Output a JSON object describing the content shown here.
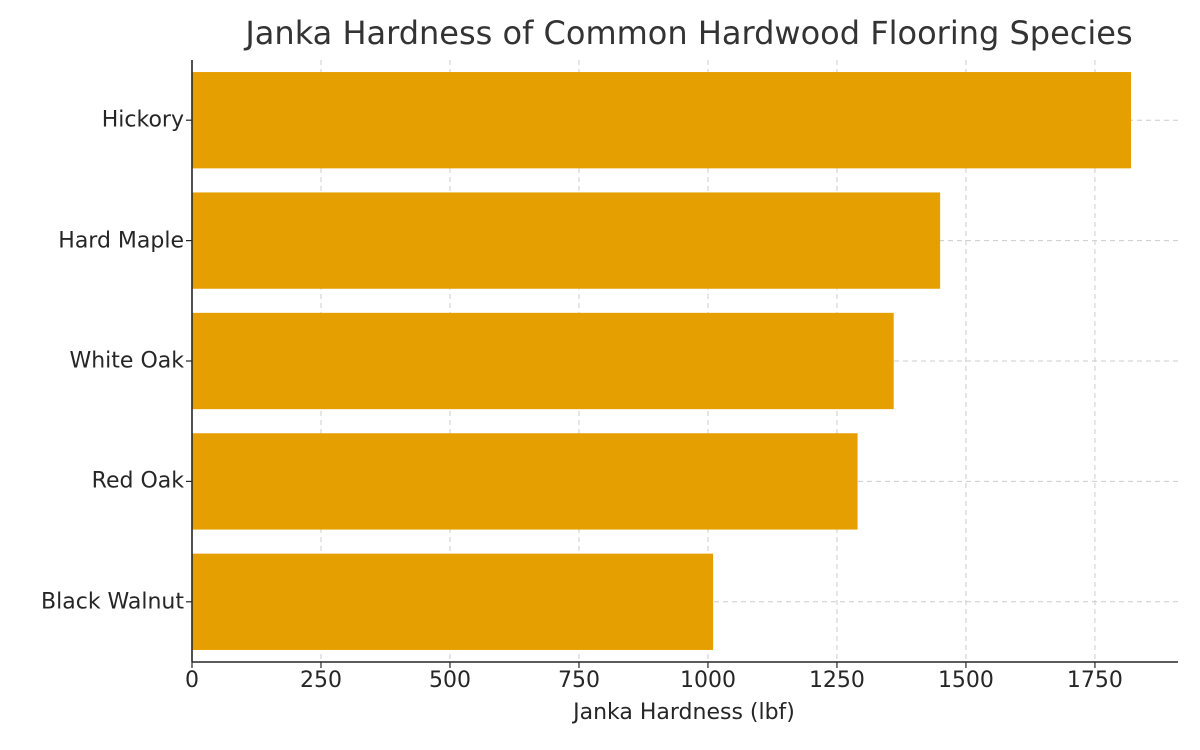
{
  "chart_data": {
    "type": "bar",
    "orientation": "horizontal",
    "title": "Janka Hardness of Common Hardwood Flooring Species",
    "xlabel": "Janka Hardness (lbf)",
    "ylabel": "",
    "categories": [
      "Hickory",
      "Hard Maple",
      "White Oak",
      "Red Oak",
      "Black Walnut"
    ],
    "values": [
      1820,
      1450,
      1360,
      1290,
      1010
    ],
    "xlim": [
      0,
      1911
    ],
    "xticks": [
      0,
      250,
      500,
      750,
      1000,
      1250,
      1500,
      1750
    ],
    "xtick_labels": [
      "0",
      "250",
      "500",
      "750",
      "1000",
      "1250",
      "1500",
      "1750"
    ],
    "grid": true,
    "grid_style": "dashed",
    "legend": null,
    "bar_color": "#E5A000"
  },
  "colors": {
    "bar": "#E5A000",
    "grid": "#CCCCCC",
    "axis": "#262626",
    "title": "#333333"
  }
}
